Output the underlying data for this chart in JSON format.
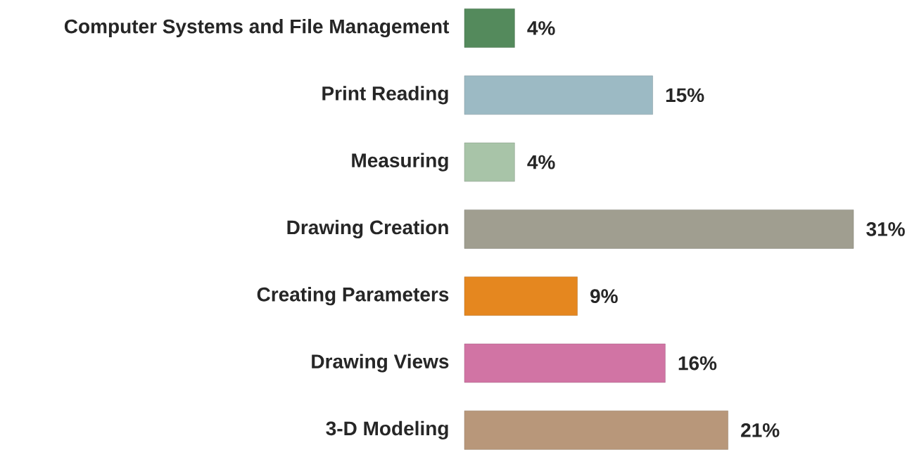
{
  "chart_data": {
    "type": "bar",
    "orientation": "horizontal",
    "tick_labels": "y",
    "categories": [
      "Computer Systems and File Management",
      "Print Reading",
      "Measuring",
      "Drawing Creation",
      "Creating Parameters",
      "Drawing Views",
      "3-D Modeling"
    ],
    "values": [
      4,
      15,
      4,
      31,
      9,
      16,
      21
    ],
    "value_labels": [
      "4%",
      "15%",
      "4%",
      "31%",
      "9%",
      "16%",
      "21%"
    ],
    "colors": [
      "#548a5c",
      "#9cbac4",
      "#a8c4a8",
      "#a09e90",
      "#e5871f",
      "#d174a4",
      "#b8977a"
    ]
  }
}
